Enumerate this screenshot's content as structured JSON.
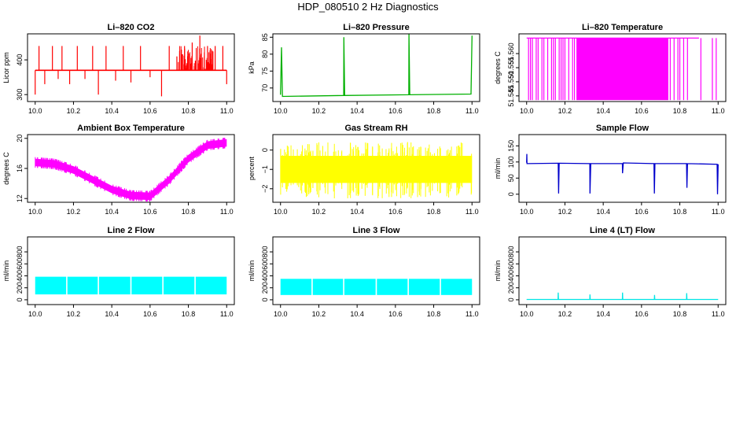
{
  "title": "HDP_080510  2 Hz Diagnostics",
  "colors": {
    "co2": "#ff0000",
    "pressure": "#00b000",
    "temperature": "#ff00ff",
    "box_temp": "#ff00ff",
    "rh": "#ffff00",
    "sample_flow": "#0000cc",
    "line2": "#00ffff",
    "line3": "#00ffff",
    "line4": "#00e5e5"
  },
  "chart_data": [
    {
      "id": "co2",
      "type": "line",
      "title": "Li–820 CO2",
      "ylabel": "Licor ppm",
      "xlabel": "",
      "xlim": [
        10.0,
        11.0
      ],
      "ylim": [
        280,
        475
      ],
      "xticks": [
        "10.0",
        "10.2",
        "10.4",
        "10.6",
        "10.8",
        "11.0"
      ],
      "xtick_values": [
        10.0,
        10.2,
        10.4,
        10.6,
        10.8,
        11.0
      ],
      "yticks": [
        "300",
        "400"
      ],
      "ytick_values": [
        300,
        400
      ],
      "baseline": 370,
      "x": [
        10.0,
        10.02,
        10.05,
        10.09,
        10.12,
        10.14,
        10.18,
        10.22,
        10.26,
        10.3,
        10.33,
        10.37,
        10.42,
        10.46,
        10.5,
        10.55,
        10.6,
        10.66,
        10.7,
        10.74,
        10.78,
        10.82,
        10.86,
        10.9,
        10.94,
        10.98,
        11.0
      ],
      "y": [
        300,
        440,
        330,
        440,
        345,
        440,
        330,
        440,
        345,
        440,
        300,
        440,
        340,
        440,
        335,
        440,
        350,
        295,
        440,
        410,
        440,
        450,
        470,
        440,
        440,
        440,
        330
      ]
    },
    {
      "id": "pressure",
      "type": "line",
      "title": "Li–820 Pressure",
      "ylabel": "kPa",
      "xlabel": "",
      "xlim": [
        10.0,
        11.0
      ],
      "ylim": [
        66,
        86
      ],
      "xticks": [
        "10.0",
        "10.2",
        "10.4",
        "10.6",
        "10.8",
        "11.0"
      ],
      "xtick_values": [
        10.0,
        10.2,
        10.4,
        10.6,
        10.8,
        11.0
      ],
      "yticks": [
        "70",
        "75",
        "80",
        "85"
      ],
      "ytick_values": [
        70,
        75,
        80,
        85
      ],
      "x": [
        10.0,
        10.005,
        10.01,
        10.33,
        10.331,
        10.335,
        10.67,
        10.671,
        10.675,
        10.995,
        11.0
      ],
      "y": [
        68.0,
        82.0,
        67.5,
        67.8,
        85.0,
        67.8,
        68.0,
        86.0,
        68.0,
        68.2,
        85.5
      ]
    },
    {
      "id": "temperature",
      "type": "area",
      "title": "Li–820 Temperature",
      "ylabel": "degrees C",
      "xlabel": "",
      "xlim": [
        10.0,
        11.0
      ],
      "ylim": [
        51.543,
        51.567
      ],
      "xticks": [
        "10.0",
        "10.2",
        "10.4",
        "10.6",
        "10.8",
        "11.0"
      ],
      "xtick_values": [
        10.0,
        10.2,
        10.4,
        10.6,
        10.8,
        11.0
      ],
      "yticks": [
        "51.545",
        "51.550",
        "51.555",
        "51.560"
      ],
      "ytick_values": [
        51.545,
        51.55,
        51.555,
        51.56
      ],
      "low": 51.5435,
      "high": 51.5655,
      "dense_ranges": [
        [
          10.26,
          10.74
        ]
      ],
      "sparse_x": [
        10.01,
        10.02,
        10.03,
        10.05,
        10.06,
        10.08,
        10.09,
        10.11,
        10.13,
        10.14,
        10.15,
        10.17,
        10.18,
        10.19,
        10.2,
        10.22,
        10.24,
        10.25,
        10.75,
        10.77,
        10.79,
        10.8,
        10.82,
        10.84,
        10.91,
        10.97,
        10.99
      ]
    },
    {
      "id": "box_temp",
      "type": "band",
      "title": "Ambient Box Temperature",
      "ylabel": "degrees C",
      "xlabel": "",
      "xlim": [
        10.0,
        11.0
      ],
      "ylim": [
        11.5,
        20.5
      ],
      "xticks": [
        "10.0",
        "10.2",
        "10.4",
        "10.6",
        "10.8",
        "11.0"
      ],
      "xtick_values": [
        10.0,
        10.2,
        10.4,
        10.6,
        10.8,
        11.0
      ],
      "yticks": [
        "12",
        "16",
        "20"
      ],
      "ytick_values": [
        12,
        16,
        20
      ],
      "x": [
        10.0,
        10.1,
        10.2,
        10.3,
        10.4,
        10.5,
        10.6,
        10.7,
        10.8,
        10.9,
        11.0
      ],
      "y": [
        16.8,
        16.6,
        15.8,
        14.5,
        13.2,
        12.4,
        12.3,
        14.5,
        17.3,
        19.1,
        19.4
      ],
      "band": 1.0
    },
    {
      "id": "rh",
      "type": "band",
      "title": "Gas Stream RH",
      "ylabel": "percent",
      "xlabel": "",
      "xlim": [
        10.0,
        11.0
      ],
      "ylim": [
        -2.7,
        0.8
      ],
      "xticks": [
        "10.0",
        "10.2",
        "10.4",
        "10.6",
        "10.8",
        "11.0"
      ],
      "xtick_values": [
        10.0,
        10.2,
        10.4,
        10.6,
        10.8,
        11.0
      ],
      "yticks": [
        "−2",
        "−1",
        "0"
      ],
      "ytick_values": [
        -2,
        -1,
        0
      ],
      "x": [
        10.0,
        11.0
      ],
      "y": [
        -0.9,
        -0.9
      ],
      "band_low": -1.7,
      "band_high": -0.3,
      "spike_low": -2.5,
      "spike_high": 0.6
    },
    {
      "id": "sample_flow",
      "type": "line",
      "title": "Sample Flow",
      "ylabel": "ml/min",
      "xlabel": "",
      "xlim": [
        10.0,
        11.0
      ],
      "ylim": [
        -25,
        185
      ],
      "xticks": [
        "10.0",
        "10.2",
        "10.4",
        "10.6",
        "10.8",
        "11.0"
      ],
      "xtick_values": [
        10.0,
        10.2,
        10.4,
        10.6,
        10.8,
        11.0
      ],
      "yticks": [
        "0",
        "50",
        "100",
        "150"
      ],
      "ytick_values": [
        0,
        50,
        100,
        150
      ],
      "x": [
        10.0,
        10.001,
        10.002,
        10.165,
        10.167,
        10.17,
        10.33,
        10.331,
        10.335,
        10.5,
        10.501,
        10.505,
        10.665,
        10.667,
        10.67,
        10.835,
        10.837,
        10.84,
        10.995,
        10.997,
        11.0
      ],
      "y": [
        98,
        125,
        95,
        96,
        2,
        96,
        95,
        2,
        95,
        95,
        65,
        97,
        95,
        2,
        95,
        95,
        20,
        95,
        93,
        0,
        93
      ]
    },
    {
      "id": "line2",
      "type": "band",
      "title": "Line 2 Flow",
      "ylabel": "ml/min",
      "xlabel": "",
      "xlim": [
        10.0,
        11.0
      ],
      "ylim": [
        -80,
        1050
      ],
      "xticks": [
        "10.0",
        "10.2",
        "10.4",
        "10.6",
        "10.8",
        "11.0"
      ],
      "xtick_values": [
        10.0,
        10.2,
        10.4,
        10.6,
        10.8,
        11.0
      ],
      "yticks": [
        "0",
        "200",
        "400",
        "600",
        "800"
      ],
      "ytick_values": [
        0,
        200,
        400,
        600,
        800
      ],
      "x": [
        10.0,
        11.0
      ],
      "y": [
        260,
        260
      ],
      "band_low": 90,
      "band_high": 385,
      "gaps": [
        10.165,
        10.33,
        10.5,
        10.667,
        10.835
      ]
    },
    {
      "id": "line3",
      "type": "band",
      "title": "Line 3 Flow",
      "ylabel": "ml/min",
      "xlabel": "",
      "xlim": [
        10.0,
        11.0
      ],
      "ylim": [
        -80,
        1050
      ],
      "xticks": [
        "10.0",
        "10.2",
        "10.4",
        "10.6",
        "10.8",
        "11.0"
      ],
      "xtick_values": [
        10.0,
        10.2,
        10.4,
        10.6,
        10.8,
        11.0
      ],
      "yticks": [
        "0",
        "200",
        "400",
        "600",
        "800"
      ],
      "ytick_values": [
        0,
        200,
        400,
        600,
        800
      ],
      "x": [
        10.0,
        11.0
      ],
      "y": [
        230,
        230
      ],
      "band_low": 80,
      "band_high": 350,
      "gaps": [
        10.165,
        10.33,
        10.5,
        10.667,
        10.835
      ]
    },
    {
      "id": "line4",
      "type": "line",
      "title": "Line 4 (LT) Flow",
      "ylabel": "ml/min",
      "xlabel": "",
      "xlim": [
        10.0,
        11.0
      ],
      "ylim": [
        -80,
        1050
      ],
      "xticks": [
        "10.0",
        "10.2",
        "10.4",
        "10.6",
        "10.8",
        "11.0"
      ],
      "xtick_values": [
        10.0,
        10.2,
        10.4,
        10.6,
        10.8,
        11.0
      ],
      "yticks": [
        "0",
        "200",
        "400",
        "600",
        "800"
      ],
      "ytick_values": [
        0,
        200,
        400,
        600,
        800
      ],
      "x": [
        10.0,
        10.164,
        10.165,
        10.166,
        10.33,
        10.331,
        10.332,
        10.5,
        10.501,
        10.502,
        10.667,
        10.668,
        10.669,
        10.835,
        10.836,
        10.837,
        11.0
      ],
      "y": [
        5,
        5,
        120,
        5,
        5,
        90,
        5,
        5,
        120,
        5,
        5,
        80,
        5,
        5,
        110,
        5,
        5
      ]
    }
  ]
}
